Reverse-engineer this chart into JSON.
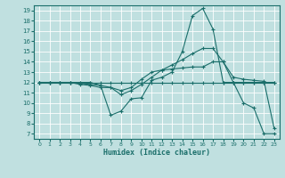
{
  "xlabel": "Humidex (Indice chaleur)",
  "bg_color": "#c0e0e0",
  "grid_color": "#ffffff",
  "line_color": "#1a6e6a",
  "xlim": [
    -0.5,
    23.5
  ],
  "ylim": [
    6.5,
    19.5
  ],
  "xticks": [
    0,
    1,
    2,
    3,
    4,
    5,
    6,
    7,
    8,
    9,
    10,
    11,
    12,
    13,
    14,
    15,
    16,
    17,
    18,
    19,
    20,
    21,
    22,
    23
  ],
  "yticks": [
    7,
    8,
    9,
    10,
    11,
    12,
    13,
    14,
    15,
    16,
    17,
    18,
    19
  ],
  "line1_x": [
    0,
    1,
    2,
    3,
    4,
    5,
    6,
    7,
    8,
    9,
    10,
    11,
    12,
    13,
    14,
    15,
    16,
    17,
    18,
    19,
    20,
    21,
    22,
    23
  ],
  "line1_y": [
    12,
    12,
    12,
    12,
    12,
    12,
    11.7,
    8.8,
    9.2,
    10.4,
    10.5,
    12.2,
    12.5,
    13.0,
    15.0,
    18.5,
    19.2,
    17.2,
    12.0,
    12.0,
    10.0,
    9.5,
    7.0,
    7.0
  ],
  "line2_x": [
    0,
    1,
    2,
    3,
    4,
    5,
    6,
    7,
    8,
    9,
    10,
    11,
    12,
    13,
    14,
    15,
    16,
    17,
    18,
    19,
    20,
    21,
    22,
    23
  ],
  "line2_y": [
    12,
    12,
    12,
    12,
    11.8,
    11.7,
    11.5,
    11.5,
    11.2,
    11.5,
    12.3,
    13.0,
    13.2,
    13.3,
    13.4,
    13.5,
    13.5,
    14.0,
    14.0,
    12.0,
    12.0,
    12.0,
    12.0,
    12.0
  ],
  "line3_x": [
    0,
    1,
    2,
    3,
    4,
    5,
    6,
    7,
    8,
    9,
    10,
    11,
    12,
    13,
    14,
    15,
    16,
    17,
    18,
    19,
    20,
    21,
    22,
    23
  ],
  "line3_y": [
    12,
    12,
    12,
    12,
    12,
    12,
    12,
    12,
    12,
    12,
    12,
    12,
    12,
    12,
    12,
    12,
    12,
    12,
    12,
    12,
    12,
    12,
    12,
    12
  ],
  "line4_x": [
    0,
    1,
    2,
    3,
    4,
    5,
    6,
    7,
    8,
    9,
    10,
    11,
    12,
    13,
    14,
    15,
    16,
    17,
    18,
    19,
    20,
    21,
    22,
    23
  ],
  "line4_y": [
    12,
    12,
    12,
    12,
    11.9,
    11.8,
    11.7,
    11.5,
    10.8,
    11.2,
    11.8,
    12.5,
    13.2,
    13.7,
    14.2,
    14.8,
    15.3,
    15.3,
    14.0,
    12.5,
    12.3,
    12.2,
    12.1,
    7.5
  ]
}
